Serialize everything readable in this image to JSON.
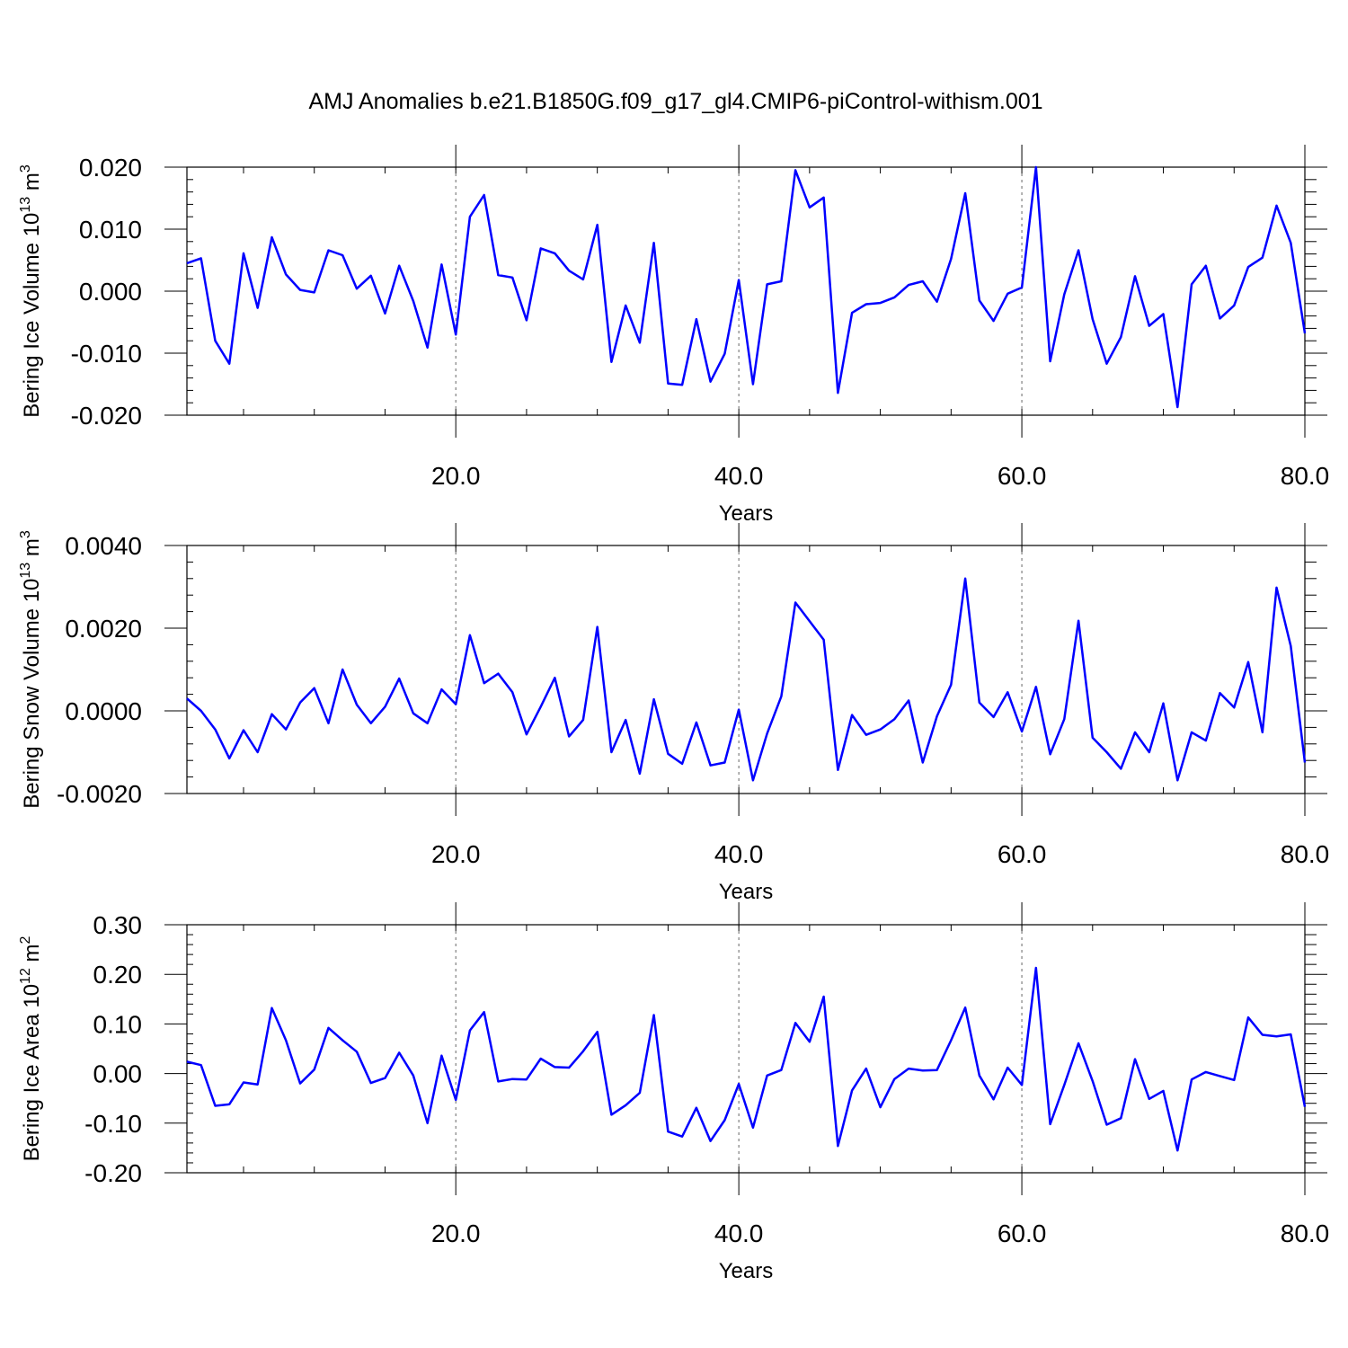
{
  "title": "AMJ Anomalies b.e21.B1850G.f09_g17_gl4.CMIP6-piControl-withism.001",
  "line_color": "#0000ff",
  "chart_data": [
    {
      "type": "line",
      "ylabel": "Bering Ice Volume 10",
      "ylabel_exp": "13",
      "ylabel_unit": " m",
      "ylabel_unit_exp": "3",
      "xlabel": "Years",
      "xlim": [
        1,
        80
      ],
      "ylim": [
        -0.02,
        0.02
      ],
      "xticks": [
        20,
        40,
        60,
        80
      ],
      "xtick_labels": [
        "20.0",
        "40.0",
        "60.0",
        "80.0"
      ],
      "yticks": [
        -0.02,
        -0.01,
        0.0,
        0.01,
        0.02
      ],
      "ytick_labels": [
        "-0.020",
        "-0.010",
        "0.000",
        "0.010",
        "0.020"
      ],
      "grid": "dashed vertical at 20, 40, 60",
      "series": [
        {
          "x": [
            1,
            2,
            3,
            4,
            5,
            6,
            7,
            8,
            9,
            10,
            11,
            12,
            13,
            14,
            15,
            16,
            17,
            18,
            19,
            20,
            21,
            22,
            23,
            24,
            25,
            26,
            27,
            28,
            29,
            30,
            31,
            32,
            33,
            34,
            35,
            36,
            37,
            38,
            39,
            40,
            41,
            42,
            43,
            44,
            45,
            46,
            47,
            48,
            49,
            50,
            51,
            52,
            53,
            54,
            55,
            56,
            57,
            58,
            59,
            60,
            61,
            62,
            63,
            64,
            65,
            66,
            67,
            68,
            69,
            70,
            71,
            72,
            73,
            74,
            75,
            76,
            77,
            78,
            79,
            80
          ],
          "values": [
            0.0045,
            0.0053,
            -0.008,
            -0.0117,
            0.0061,
            -0.0027,
            0.0087,
            0.0027,
            0.0002,
            -0.0002,
            0.0066,
            0.0058,
            0.0004,
            0.0025,
            -0.0036,
            0.0041,
            -0.0016,
            -0.0091,
            0.0043,
            -0.007,
            0.012,
            0.0155,
            0.0026,
            0.0022,
            -0.0047,
            0.0069,
            0.0061,
            0.0033,
            0.0019,
            0.0107,
            -0.0114,
            -0.0023,
            -0.0083,
            0.0078,
            -0.0149,
            -0.0151,
            -0.0045,
            -0.0146,
            -0.0101,
            0.0018,
            -0.015,
            0.0011,
            0.0016,
            0.0195,
            0.0135,
            0.0151,
            -0.0164,
            -0.0035,
            -0.0021,
            -0.0019,
            -0.001,
            0.001,
            0.0016,
            -0.0017,
            0.0052,
            0.0158,
            -0.0015,
            -0.0048,
            -0.0004,
            0.0006,
            0.02,
            -0.0113,
            -0.0005,
            0.0066,
            -0.0045,
            -0.0117,
            -0.0074,
            0.0024,
            -0.0056,
            -0.0037,
            -0.0187,
            0.0011,
            0.0041,
            -0.0044,
            -0.0023,
            0.0039,
            0.0054,
            0.0138,
            0.0078,
            -0.0068
          ]
        }
      ]
    },
    {
      "type": "line",
      "ylabel": "Bering Snow Volume 10",
      "ylabel_exp": "13",
      "ylabel_unit": " m",
      "ylabel_unit_exp": "3",
      "xlabel": "Years",
      "xlim": [
        1,
        80
      ],
      "ylim": [
        -0.002,
        0.004
      ],
      "xticks": [
        20,
        40,
        60,
        80
      ],
      "xtick_labels": [
        "20.0",
        "40.0",
        "60.0",
        "80.0"
      ],
      "yticks": [
        -0.002,
        0.0,
        0.002,
        0.004
      ],
      "ytick_labels": [
        "-0.0020",
        "0.0000",
        "0.0020",
        "0.0040"
      ],
      "grid": "dashed vertical at 20, 40, 60",
      "series": [
        {
          "x": [
            1,
            2,
            3,
            4,
            5,
            6,
            7,
            8,
            9,
            10,
            11,
            12,
            13,
            14,
            15,
            16,
            17,
            18,
            19,
            20,
            21,
            22,
            23,
            24,
            25,
            26,
            27,
            28,
            29,
            30,
            31,
            32,
            33,
            34,
            35,
            36,
            37,
            38,
            39,
            40,
            41,
            42,
            43,
            44,
            45,
            46,
            47,
            48,
            49,
            50,
            51,
            52,
            53,
            54,
            55,
            56,
            57,
            58,
            59,
            60,
            61,
            62,
            63,
            64,
            65,
            66,
            67,
            68,
            69,
            70,
            71,
            72,
            73,
            74,
            75,
            76,
            77,
            78,
            79,
            80
          ],
          "values": [
            0.0003,
            0.0,
            -0.00045,
            -0.00115,
            -0.00047,
            -0.001,
            -8e-05,
            -0.00045,
            0.0002,
            0.00055,
            -0.0003,
            0.001,
            0.00015,
            -0.0003,
            0.0001,
            0.00078,
            -6e-05,
            -0.0003,
            0.00052,
            0.00016,
            0.00183,
            0.00067,
            0.0009,
            0.00045,
            -0.00057,
            0.0001,
            0.0008,
            -0.00062,
            -0.00022,
            0.00203,
            -0.001,
            -0.00022,
            -0.00152,
            0.00028,
            -0.00104,
            -0.00128,
            -0.00028,
            -0.00132,
            -0.00125,
            3e-05,
            -0.00168,
            -0.00055,
            0.00035,
            0.00262,
            0.00217,
            0.00172,
            -0.00143,
            -0.0001,
            -0.00058,
            -0.00045,
            -0.0002,
            0.00025,
            -0.00125,
            -0.00013,
            0.00063,
            0.0032,
            0.0002,
            -0.00015,
            0.00045,
            -0.0005,
            0.00058,
            -0.00105,
            -0.0002,
            0.00218,
            -0.00065,
            -0.001,
            -0.0014,
            -0.00052,
            -0.001,
            0.00018,
            -0.00168,
            -0.00052,
            -0.00072,
            0.00043,
            8e-05,
            0.00118,
            -0.00052,
            0.00298,
            0.00157,
            -0.00125
          ]
        }
      ]
    },
    {
      "type": "line",
      "ylabel": "Bering Ice Area 10",
      "ylabel_exp": "12",
      "ylabel_unit": " m",
      "ylabel_unit_exp": "2",
      "xlabel": "Years",
      "xlim": [
        1,
        80
      ],
      "ylim": [
        -0.2,
        0.3
      ],
      "xticks": [
        20,
        40,
        60,
        80
      ],
      "xtick_labels": [
        "20.0",
        "40.0",
        "60.0",
        "80.0"
      ],
      "yticks": [
        -0.2,
        -0.1,
        0.0,
        0.1,
        0.2,
        0.3
      ],
      "ytick_labels": [
        "-0.20",
        "-0.10",
        "0.00",
        "0.10",
        "0.20",
        "0.30"
      ],
      "grid": "dashed vertical at 20, 40, 60",
      "series": [
        {
          "x": [
            1,
            2,
            3,
            4,
            5,
            6,
            7,
            8,
            9,
            10,
            11,
            12,
            13,
            14,
            15,
            16,
            17,
            18,
            19,
            20,
            21,
            22,
            23,
            24,
            25,
            26,
            27,
            28,
            29,
            30,
            31,
            32,
            33,
            34,
            35,
            36,
            37,
            38,
            39,
            40,
            41,
            42,
            43,
            44,
            45,
            46,
            47,
            48,
            49,
            50,
            51,
            52,
            53,
            54,
            55,
            56,
            57,
            58,
            59,
            60,
            61,
            62,
            63,
            64,
            65,
            66,
            67,
            68,
            69,
            70,
            71,
            72,
            73,
            74,
            75,
            76,
            77,
            78,
            79,
            80
          ],
          "values": [
            0.024,
            0.017,
            -0.065,
            -0.062,
            -0.018,
            -0.022,
            0.132,
            0.067,
            -0.02,
            0.008,
            0.092,
            0.067,
            0.044,
            -0.019,
            -0.009,
            0.042,
            -0.004,
            -0.1,
            0.036,
            -0.053,
            0.087,
            0.124,
            -0.016,
            -0.011,
            -0.012,
            0.03,
            0.013,
            0.012,
            0.045,
            0.084,
            -0.083,
            -0.064,
            -0.039,
            0.118,
            -0.117,
            -0.127,
            -0.069,
            -0.136,
            -0.094,
            -0.021,
            -0.109,
            -0.004,
            0.007,
            0.102,
            0.064,
            0.155,
            -0.146,
            -0.034,
            0.01,
            -0.068,
            -0.011,
            0.01,
            0.006,
            0.007,
            0.067,
            0.133,
            -0.004,
            -0.052,
            0.012,
            -0.023,
            0.213,
            -0.102,
            -0.023,
            0.061,
            -0.015,
            -0.103,
            -0.09,
            0.029,
            -0.051,
            -0.035,
            -0.155,
            -0.012,
            0.003,
            -0.005,
            -0.013,
            0.113,
            0.078,
            0.075,
            0.079,
            -0.067
          ]
        }
      ]
    }
  ]
}
